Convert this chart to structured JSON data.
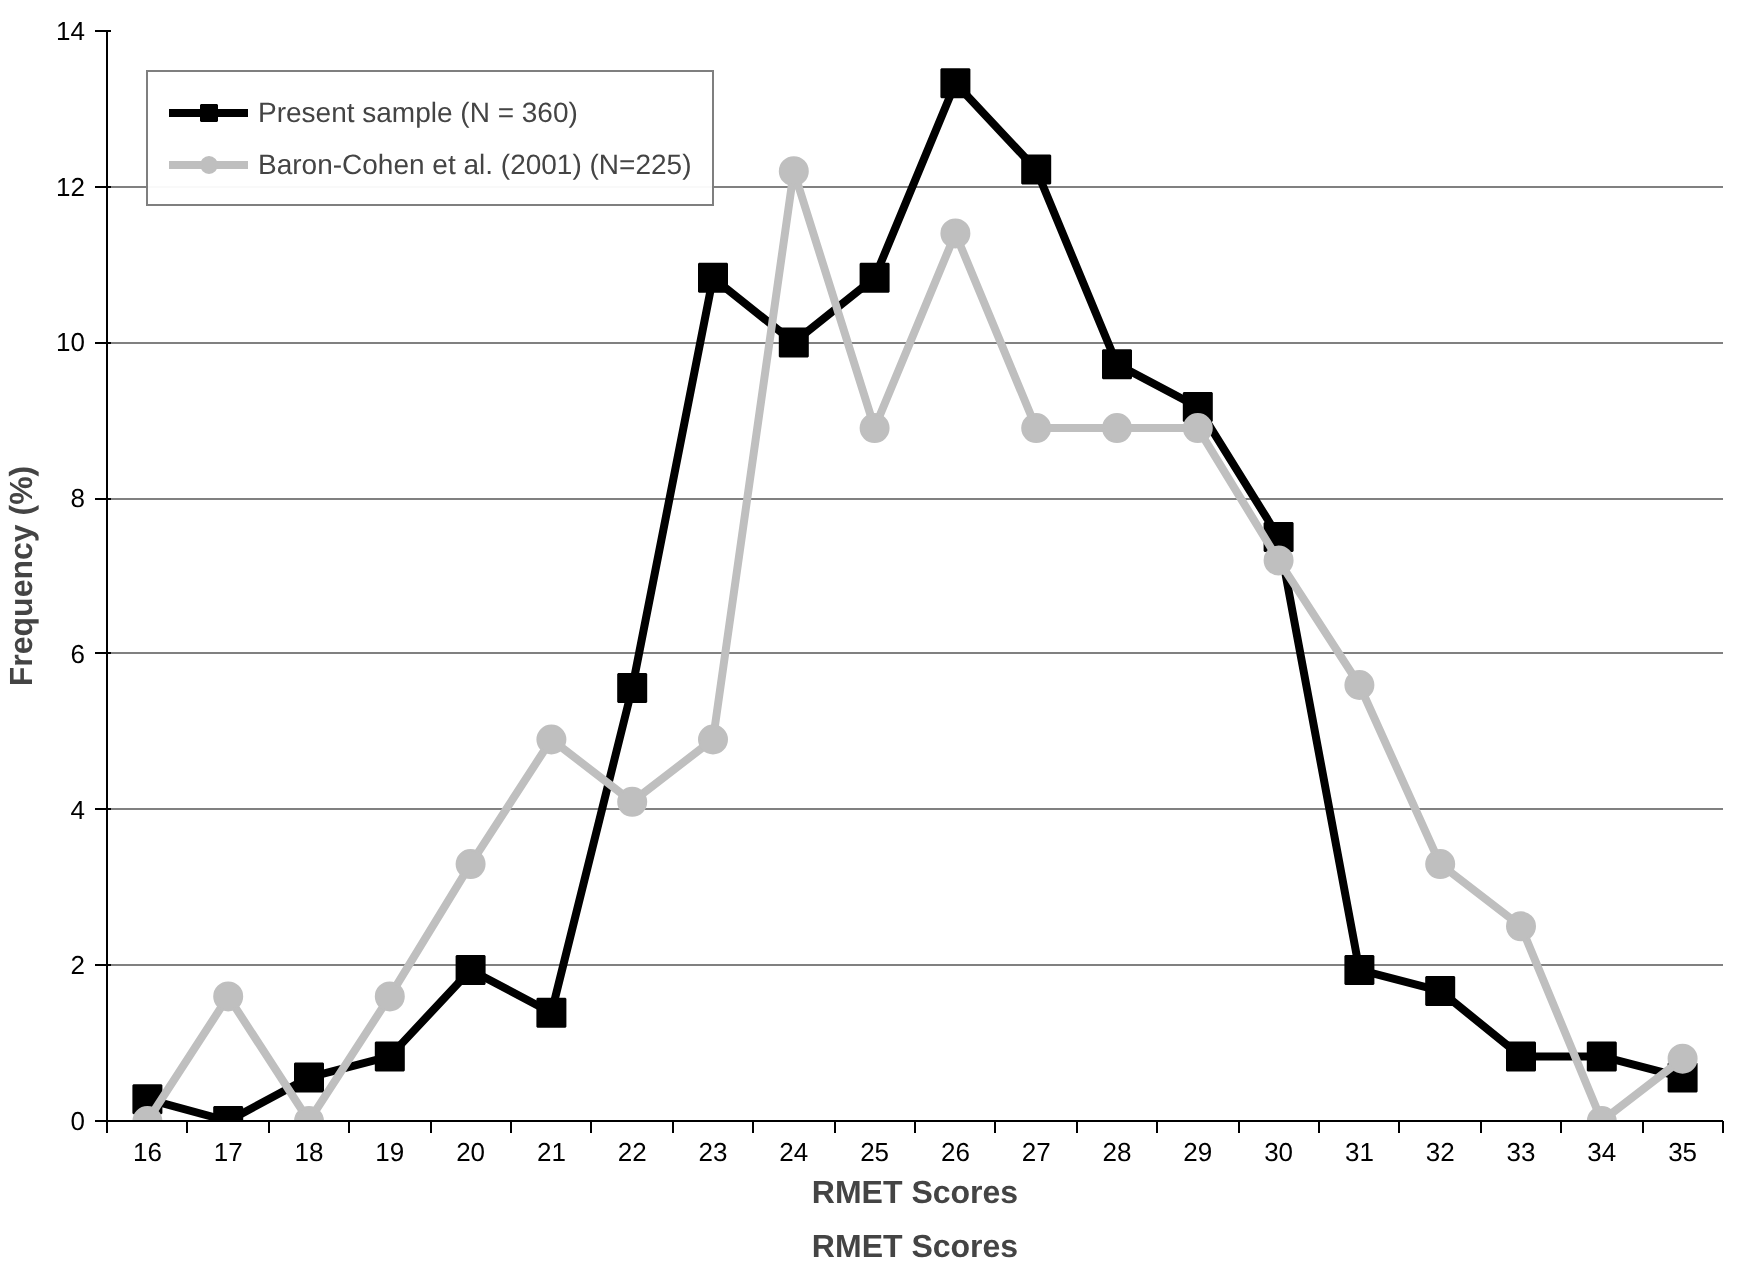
{
  "chart_data": {
    "type": "line",
    "categories": [
      "16",
      "17",
      "18",
      "19",
      "20",
      "21",
      "22",
      "23",
      "24",
      "25",
      "26",
      "27",
      "28",
      "29",
      "30",
      "31",
      "32",
      "33",
      "34",
      "35"
    ],
    "xlabel": "RMET Scores",
    "ylabel": "Frequency (%)",
    "annotations": [
      "RMET Scores"
    ],
    "ylim": [
      0,
      14
    ],
    "yticks": [
      0,
      2,
      4,
      6,
      8,
      10,
      12,
      14
    ],
    "grid": "y",
    "legend": "top left",
    "series": [
      {
        "name": "Present sample (N = 360)",
        "color": "#000000",
        "marker": "square",
        "values": [
          0.28,
          0,
          0.56,
          0.83,
          1.94,
          1.39,
          5.56,
          10.83,
          10.0,
          10.83,
          13.33,
          12.22,
          9.72,
          9.17,
          7.5,
          1.94,
          1.67,
          0.83,
          0.83,
          0.56
        ]
      },
      {
        "name": "Baron-Cohen et al. (2001) (N=225)",
        "color": "#bfbfbf",
        "marker": "circle",
        "values": [
          0,
          1.6,
          0,
          1.6,
          3.3,
          4.9,
          4.1,
          4.9,
          12.2,
          8.9,
          11.4,
          8.9,
          8.9,
          8.9,
          7.2,
          5.6,
          3.3,
          2.5,
          0,
          0.8
        ]
      }
    ]
  }
}
